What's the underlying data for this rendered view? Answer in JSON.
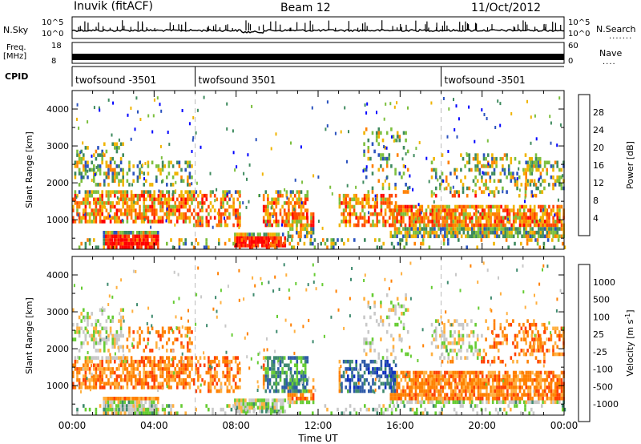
{
  "header": {
    "station": "Inuvik (fitACF)",
    "beam": "Beam 12",
    "date": "11/Oct/2012"
  },
  "strip_labels": {
    "nsky": "N.Sky",
    "nsky_ticks": [
      "10^5",
      "10^0"
    ],
    "nsearch": "N.Search",
    "freq": "Freq.",
    "freq_unit": "[MHz]",
    "freq_ticks": [
      "18",
      "8"
    ],
    "nave": "Nave",
    "nave_ticks": [
      "60",
      "0"
    ],
    "cpid": "CPID"
  },
  "cpid_segments": [
    {
      "start_hour": 0,
      "label": "twofsound -3501"
    },
    {
      "start_hour": 6,
      "label": "twofsound 3501"
    },
    {
      "start_hour": 18,
      "label": "twofsound -3501"
    }
  ],
  "chart_data": [
    {
      "type": "heatmap",
      "name": "power",
      "ylabel": "Slant Range [km]",
      "ylim": [
        200,
        4500
      ],
      "yticks": [
        "1000",
        "2000",
        "3000",
        "4000"
      ],
      "xlim_hours": [
        0,
        24
      ],
      "colorbar": {
        "label": "Power [dB]",
        "levels": [
          "4",
          "8",
          "12",
          "16",
          "20",
          "24",
          "28"
        ],
        "colors": [
          "#0000ff",
          "#2a52be",
          "#3e8a5e",
          "#7cbf3e",
          "#f0b400",
          "#ff8000",
          "#ff4500",
          "#ff0000"
        ]
      }
    },
    {
      "type": "heatmap",
      "name": "velocity",
      "ylabel": "Slant Range [km]",
      "ylim": [
        200,
        4500
      ],
      "yticks": [
        "1000",
        "2000",
        "3000",
        "4000"
      ],
      "xlim_hours": [
        0,
        24
      ],
      "colorbar": {
        "label": "Velocity [m s",
        "label_sup": "-1",
        "label_end": "]",
        "levels": [
          "1000",
          "500",
          "100",
          "25",
          "-25",
          "-100",
          "-500",
          "-1000"
        ],
        "colors": [
          "#1030c0",
          "#2e5aa8",
          "#3e8a6e",
          "#66cc33",
          "#c8c8c8",
          "#ffb040",
          "#ff8000",
          "#ff4000",
          "#ff0000"
        ]
      }
    }
  ],
  "time_axis": {
    "ticks": [
      "00:00",
      "04:00",
      "08:00",
      "12:00",
      "16:00",
      "20:00",
      "00:00"
    ],
    "label": "Time UT"
  }
}
